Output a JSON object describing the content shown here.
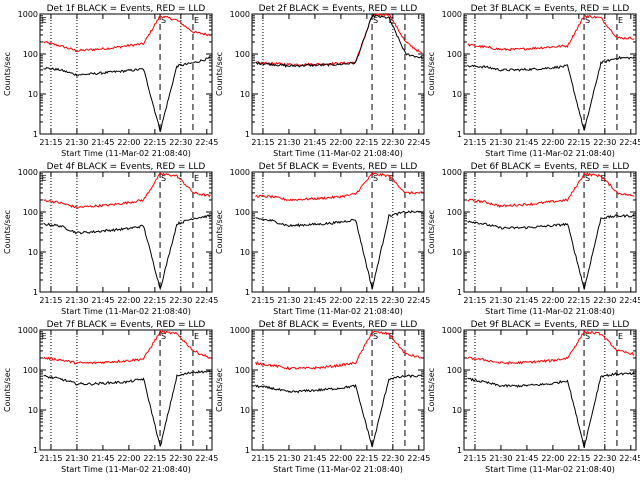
{
  "chart_data": [
    {
      "type": "line",
      "title": "Det 1f BLACK = Events, RED = LLD",
      "xlabel": "Start Time (11-Mar-02 21:08:40)",
      "ylabel": "Counts/sec",
      "yscale": "log",
      "ylim": [
        1,
        1000
      ],
      "yticks": [
        "1",
        "10",
        "100",
        "1000"
      ],
      "xticks": [
        "21:15",
        "21:30",
        "21:45",
        "22:00",
        "22:15",
        "22:30",
        "22:45"
      ],
      "markers": {
        "dotted": [
          "21:15",
          "21:30",
          "22:30"
        ],
        "dashed": [
          "22:18",
          "22:37"
        ],
        "labels": [
          {
            "text": "E",
            "at": "21:09"
          },
          {
            "text": "S",
            "at": "22:18"
          },
          {
            "text": "E",
            "at": "22:37"
          }
        ]
      },
      "series": [
        {
          "color": "#ff0000",
          "levels": [
            200,
            160,
            120,
            130,
            140,
            160,
            180,
            900,
            700,
            350,
            300
          ]
        },
        {
          "color": "#000000",
          "levels": [
            45,
            40,
            30,
            32,
            35,
            38,
            42,
            1.2,
            50,
            60,
            80
          ]
        }
      ]
    },
    {
      "type": "line",
      "title": "Det 2f BLACK = Events, RED = LLD",
      "xlabel": "Start Time (11-Mar-02 21:08:40)",
      "ylabel": "Counts/sec",
      "yscale": "log",
      "ylim": [
        1,
        1000
      ],
      "yticks": [
        "1",
        "10",
        "100",
        "1000"
      ],
      "xticks": [
        "21:15",
        "21:30",
        "21:45",
        "22:00",
        "22:15",
        "22:30",
        "22:45"
      ],
      "markers": {
        "dotted": [
          "21:15",
          "22:30"
        ],
        "dashed": [
          "22:18",
          "22:37"
        ],
        "labels": [
          {
            "text": "S",
            "at": "22:18"
          },
          {
            "text": "E",
            "at": "22:27"
          }
        ]
      },
      "series": [
        {
          "color": "#ff0000",
          "levels": [
            60,
            58,
            55,
            55,
            56,
            58,
            62,
            900,
            1000,
            200,
            100
          ]
        },
        {
          "color": "#000000",
          "levels": [
            60,
            55,
            50,
            52,
            53,
            55,
            60,
            900,
            800,
            100,
            80
          ]
        }
      ]
    },
    {
      "type": "line",
      "title": "Det 3f BLACK = Events, RED = LLD",
      "xlabel": "Start Time (11-Mar-02 21:08:40)",
      "ylabel": "Counts/sec",
      "yscale": "log",
      "ylim": [
        1,
        1000
      ],
      "yticks": [
        "1",
        "10",
        "100",
        "1000"
      ],
      "xticks": [
        "21:15",
        "21:30",
        "21:45",
        "22:00",
        "22:15",
        "22:30",
        "22:45"
      ],
      "markers": {
        "dotted": [
          "21:15",
          "22:30"
        ],
        "dashed": [
          "22:18",
          "22:37"
        ],
        "labels": [
          {
            "text": "S",
            "at": "22:18"
          },
          {
            "text": "E",
            "at": "22:37"
          }
        ]
      },
      "series": [
        {
          "color": "#ff0000",
          "levels": [
            170,
            150,
            130,
            130,
            140,
            150,
            160,
            900,
            800,
            250,
            250
          ]
        },
        {
          "color": "#000000",
          "levels": [
            50,
            48,
            40,
            40,
            42,
            45,
            50,
            1.2,
            60,
            80,
            80
          ]
        }
      ]
    },
    {
      "type": "line",
      "title": "Det 4f BLACK = Events, RED = LLD",
      "xlabel": "Start Time (11-Mar-02 21:08:40)",
      "ylabel": "Counts/sec",
      "yscale": "log",
      "ylim": [
        1,
        1000
      ],
      "yticks": [
        "1",
        "10",
        "100",
        "1000"
      ],
      "xticks": [
        "21:15",
        "21:30",
        "21:45",
        "22:00",
        "22:15",
        "22:30",
        "22:45"
      ],
      "markers": {
        "dotted": [
          "21:15",
          "21:30",
          "22:30"
        ],
        "dashed": [
          "22:18",
          "22:37"
        ],
        "labels": [
          {
            "text": "E",
            "at": "21:09"
          },
          {
            "text": "S",
            "at": "22:18"
          },
          {
            "text": "E",
            "at": "22:37"
          }
        ]
      },
      "series": [
        {
          "color": "#ff0000",
          "levels": [
            200,
            170,
            130,
            140,
            150,
            170,
            200,
            900,
            800,
            300,
            250
          ]
        },
        {
          "color": "#000000",
          "levels": [
            50,
            45,
            30,
            32,
            35,
            38,
            45,
            1.2,
            50,
            70,
            80
          ]
        }
      ]
    },
    {
      "type": "line",
      "title": "Det 5f BLACK = Events, RED = LLD",
      "xlabel": "Start Time (11-Mar-02 21:08:40)",
      "ylabel": "Counts/sec",
      "yscale": "log",
      "ylim": [
        1,
        1000
      ],
      "yticks": [
        "1",
        "10",
        "100",
        "1000"
      ],
      "xticks": [
        "21:15",
        "21:30",
        "21:45",
        "22:00",
        "22:15",
        "22:30",
        "22:45"
      ],
      "markers": {
        "dotted": [
          "21:15",
          "22:30"
        ],
        "dashed": [
          "22:18",
          "22:37"
        ],
        "labels": [
          {
            "text": "S",
            "at": "22:18"
          },
          {
            "text": "E",
            "at": "22:27"
          }
        ]
      },
      "series": [
        {
          "color": "#ff0000",
          "levels": [
            250,
            240,
            200,
            210,
            220,
            240,
            280,
            900,
            800,
            300,
            300
          ]
        },
        {
          "color": "#000000",
          "levels": [
            70,
            60,
            45,
            48,
            50,
            55,
            65,
            1.2,
            80,
            100,
            100
          ]
        }
      ]
    },
    {
      "type": "line",
      "title": "Det 6f BLACK = Events, RED = LLD",
      "xlabel": "Start Time (11-Mar-02 21:08:40)",
      "ylabel": "Counts/sec",
      "yscale": "log",
      "ylim": [
        1,
        1000
      ],
      "yticks": [
        "1",
        "10",
        "100",
        "1000"
      ],
      "xticks": [
        "21:15",
        "21:30",
        "21:45",
        "22:00",
        "22:15",
        "22:30",
        "22:45"
      ],
      "markers": {
        "dotted": [
          "21:15",
          "22:30"
        ],
        "dashed": [
          "22:18",
          "22:37"
        ],
        "labels": [
          {
            "text": "S",
            "at": "22:18"
          },
          {
            "text": "E",
            "at": "22:27"
          }
        ]
      },
      "series": [
        {
          "color": "#ff0000",
          "levels": [
            200,
            180,
            140,
            150,
            160,
            180,
            200,
            900,
            800,
            300,
            250
          ]
        },
        {
          "color": "#000000",
          "levels": [
            60,
            50,
            40,
            40,
            42,
            45,
            50,
            1.2,
            70,
            80,
            80
          ]
        }
      ]
    },
    {
      "type": "line",
      "title": "Det 7f BLACK = Events, RED = LLD",
      "xlabel": "Start Time (11-Mar-02 21:08:40)",
      "ylabel": "Counts/sec",
      "yscale": "log",
      "ylim": [
        1,
        1000
      ],
      "yticks": [
        "1",
        "10",
        "100",
        "1000"
      ],
      "xticks": [
        "21:15",
        "21:30",
        "21:45",
        "22:00",
        "22:15",
        "22:30",
        "22:45"
      ],
      "markers": {
        "dotted": [
          "21:15",
          "21:30",
          "22:30"
        ],
        "dashed": [
          "22:18",
          "22:37"
        ],
        "labels": [
          {
            "text": "E",
            "at": "21:09"
          },
          {
            "text": "S",
            "at": "22:18"
          },
          {
            "text": "E",
            "at": "22:37"
          }
        ]
      },
      "series": [
        {
          "color": "#ff0000",
          "levels": [
            200,
            180,
            150,
            150,
            160,
            170,
            190,
            900,
            800,
            300,
            200
          ]
        },
        {
          "color": "#000000",
          "levels": [
            70,
            60,
            45,
            45,
            48,
            50,
            60,
            1.2,
            70,
            90,
            90
          ]
        }
      ]
    },
    {
      "type": "line",
      "title": "Det 8f BLACK = Events, RED = LLD",
      "xlabel": "Start Time (11-Mar-02 21:08:40)",
      "ylabel": "Counts/sec",
      "yscale": "log",
      "ylim": [
        1,
        1000
      ],
      "yticks": [
        "1",
        "10",
        "100",
        "1000"
      ],
      "xticks": [
        "21:15",
        "21:30",
        "21:45",
        "22:00",
        "22:15",
        "22:30",
        "22:45"
      ],
      "markers": {
        "dotted": [
          "21:15",
          "22:30"
        ],
        "dashed": [
          "22:18",
          "22:37"
        ],
        "labels": [
          {
            "text": "S",
            "at": "22:18"
          },
          {
            "text": "E",
            "at": "22:27"
          }
        ]
      },
      "series": [
        {
          "color": "#ff0000",
          "levels": [
            150,
            130,
            110,
            110,
            115,
            130,
            150,
            900,
            800,
            250,
            200
          ]
        },
        {
          "color": "#000000",
          "levels": [
            40,
            35,
            28,
            30,
            32,
            35,
            40,
            1.2,
            60,
            70,
            70
          ]
        }
      ]
    },
    {
      "type": "line",
      "title": "Det 9f BLACK = Events, RED = LLD",
      "xlabel": "Start Time (11-Mar-02 21:08:40)",
      "ylabel": "Counts/sec",
      "yscale": "log",
      "ylim": [
        1,
        1000
      ],
      "yticks": [
        "1",
        "10",
        "100",
        "1000"
      ],
      "xticks": [
        "21:15",
        "21:30",
        "21:45",
        "22:00",
        "22:15",
        "22:30",
        "22:45"
      ],
      "markers": {
        "dotted": [
          "21:15",
          "22:30"
        ],
        "dashed": [
          "22:18",
          "22:37"
        ],
        "labels": [
          {
            "text": "S",
            "at": "22:18"
          },
          {
            "text": "E",
            "at": "22:37"
          }
        ]
      },
      "series": [
        {
          "color": "#ff0000",
          "levels": [
            200,
            180,
            150,
            150,
            160,
            170,
            200,
            900,
            800,
            300,
            250
          ]
        },
        {
          "color": "#000000",
          "levels": [
            60,
            50,
            40,
            40,
            42,
            45,
            55,
            1.2,
            70,
            80,
            80
          ]
        }
      ]
    }
  ]
}
